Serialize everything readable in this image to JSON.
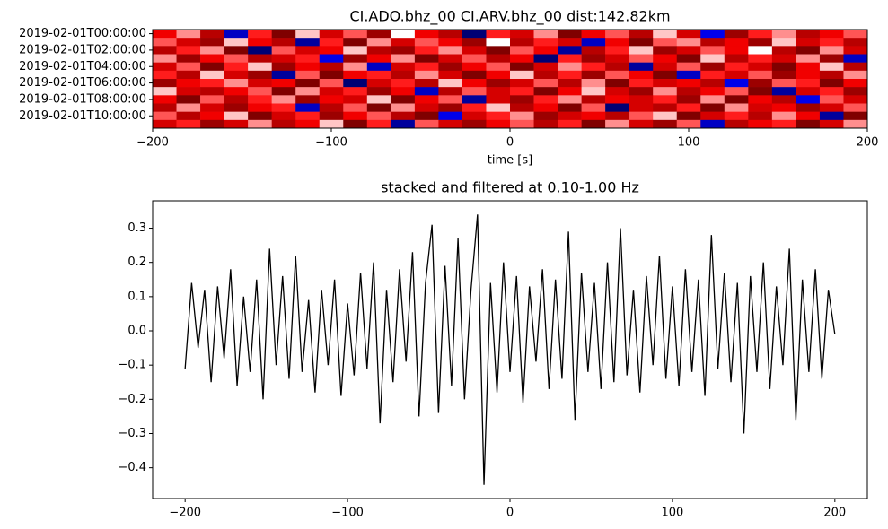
{
  "chart_data": [
    {
      "type": "heatmap",
      "title": "CI.ADO.bhz_00 CI.ARV.bhz_00  dist:142.82km",
      "xlabel": "time [s]",
      "colormap": "seismic",
      "categories": [
        "2019-02-01T00:00:00",
        null,
        "2019-02-01T02:00:00",
        null,
        "2019-02-01T04:00:00",
        null,
        "2019-02-01T06:00:00",
        null,
        "2019-02-01T08:00:00",
        null,
        "2019-02-01T10:00:00",
        null
      ],
      "xlim": [
        -200,
        200
      ],
      "xticks": [
        {
          "value": -200,
          "label": "−200"
        },
        {
          "value": -100,
          "label": "−100"
        },
        0,
        100,
        200
      ],
      "z": [
        [
          0.5,
          0.2,
          0.7,
          -0.6,
          0.4,
          0.9,
          0.1,
          0.6,
          0.3,
          0.8,
          0.0,
          0.5,
          0.7,
          -0.8,
          0.4,
          0.6,
          0.2,
          0.9,
          0.5,
          0.3,
          0.7,
          0.1,
          0.6,
          -0.5,
          0.8,
          0.4,
          0.2,
          0.7,
          0.5,
          0.3
        ],
        [
          0.3,
          0.6,
          0.8,
          0.1,
          0.5,
          0.7,
          -0.7,
          0.4,
          0.9,
          0.2,
          0.6,
          0.3,
          0.5,
          0.8,
          0.0,
          0.7,
          0.4,
          0.6,
          -0.6,
          0.5,
          0.9,
          0.3,
          0.2,
          0.7,
          0.5,
          0.8,
          0.1,
          0.6,
          0.4,
          0.7
        ],
        [
          0.7,
          0.4,
          0.2,
          0.9,
          -0.8,
          0.3,
          0.6,
          0.5,
          0.1,
          0.7,
          0.8,
          0.4,
          0.2,
          0.6,
          0.9,
          0.3,
          0.5,
          -0.7,
          0.7,
          0.4,
          0.1,
          0.8,
          0.6,
          0.3,
          0.5,
          0.0,
          0.7,
          0.9,
          0.2,
          0.6
        ],
        [
          0.2,
          0.8,
          0.5,
          0.3,
          0.7,
          0.6,
          0.4,
          -0.5,
          0.8,
          0.5,
          0.2,
          0.9,
          0.6,
          0.3,
          0.7,
          0.5,
          -0.8,
          0.4,
          0.8,
          0.6,
          0.3,
          0.5,
          0.9,
          0.1,
          0.7,
          0.4,
          0.6,
          0.2,
          0.8,
          -0.6
        ],
        [
          0.6,
          0.3,
          0.9,
          0.4,
          0.1,
          0.8,
          0.5,
          0.7,
          0.2,
          -0.6,
          0.6,
          0.4,
          0.8,
          0.5,
          0.3,
          0.9,
          0.6,
          0.2,
          0.4,
          0.7,
          -0.7,
          0.6,
          0.3,
          0.8,
          0.4,
          0.6,
          0.9,
          0.5,
          0.1,
          0.7
        ],
        [
          0.4,
          0.7,
          0.1,
          0.6,
          0.8,
          -0.7,
          0.3,
          0.9,
          0.5,
          0.4,
          0.7,
          0.2,
          0.6,
          0.9,
          0.5,
          0.1,
          0.7,
          0.4,
          0.8,
          0.3,
          0.5,
          0.9,
          -0.6,
          0.4,
          0.6,
          0.3,
          0.8,
          0.5,
          0.7,
          0.2
        ],
        [
          0.8,
          0.5,
          0.4,
          0.2,
          0.6,
          0.5,
          0.9,
          0.3,
          -0.8,
          0.6,
          0.4,
          0.7,
          0.1,
          0.5,
          0.8,
          0.6,
          0.3,
          0.7,
          0.2,
          0.9,
          0.4,
          0.6,
          0.5,
          0.7,
          -0.5,
          0.8,
          0.3,
          0.4,
          0.9,
          0.5
        ],
        [
          0.1,
          0.6,
          0.7,
          0.5,
          0.3,
          0.9,
          0.2,
          0.6,
          0.4,
          0.8,
          0.5,
          -0.6,
          0.7,
          0.3,
          0.6,
          0.4,
          0.9,
          0.5,
          0.1,
          0.6,
          0.8,
          0.2,
          0.7,
          0.5,
          0.3,
          0.9,
          -0.7,
          0.6,
          0.4,
          0.8
        ],
        [
          0.5,
          0.9,
          0.3,
          0.7,
          0.4,
          0.2,
          0.8,
          0.5,
          0.6,
          0.1,
          0.9,
          0.5,
          0.3,
          -0.7,
          0.6,
          0.8,
          0.4,
          0.2,
          0.7,
          0.5,
          0.6,
          0.4,
          0.8,
          0.2,
          0.9,
          0.5,
          0.7,
          -0.5,
          0.3,
          0.6
        ],
        [
          0.7,
          0.2,
          0.6,
          0.8,
          0.5,
          0.4,
          -0.6,
          0.7,
          0.3,
          0.9,
          0.2,
          0.6,
          0.8,
          0.4,
          0.1,
          0.7,
          0.5,
          0.9,
          0.3,
          -0.8,
          0.6,
          0.7,
          0.4,
          0.9,
          0.2,
          0.6,
          0.5,
          0.8,
          0.6,
          0.3
        ],
        [
          0.3,
          0.7,
          0.5,
          0.1,
          0.9,
          0.6,
          0.4,
          0.8,
          0.5,
          0.3,
          0.7,
          0.9,
          -0.5,
          0.6,
          0.4,
          0.2,
          0.8,
          0.6,
          0.5,
          0.7,
          0.3,
          0.1,
          0.9,
          0.6,
          0.4,
          0.7,
          0.2,
          0.5,
          -0.7,
          0.9
        ],
        [
          0.6,
          0.4,
          0.8,
          0.6,
          0.2,
          0.7,
          0.5,
          0.1,
          0.9,
          0.4,
          -0.7,
          0.3,
          0.6,
          0.8,
          0.5,
          0.3,
          0.7,
          0.4,
          0.9,
          0.2,
          0.6,
          0.8,
          0.3,
          -0.6,
          0.7,
          0.5,
          0.4,
          0.9,
          0.6,
          0.2
        ]
      ]
    },
    {
      "type": "line",
      "title": "stacked and filtered at 0.10-1.00 Hz",
      "color": "#000000",
      "xlim": [
        -220,
        220
      ],
      "ylim": [
        -0.49,
        0.38
      ],
      "xticks": [
        {
          "value": -200,
          "label": "−200"
        },
        {
          "value": -100,
          "label": "−100"
        },
        0,
        100,
        200
      ],
      "yticks": [
        {
          "value": -0.4,
          "label": "−0.4"
        },
        {
          "value": -0.3,
          "label": "−0.3"
        },
        {
          "value": -0.2,
          "label": "−0.2"
        },
        {
          "value": -0.1,
          "label": "−0.1"
        },
        {
          "value": 0,
          "label": "0.0"
        },
        0.1,
        0.2,
        0.3
      ],
      "x": [
        -200,
        -196,
        -192,
        -188,
        -184,
        -180,
        -176,
        -172,
        -168,
        -164,
        -160,
        -156,
        -152,
        -148,
        -144,
        -140,
        -136,
        -132,
        -128,
        -124,
        -120,
        -116,
        -112,
        -108,
        -104,
        -100,
        -96,
        -92,
        -88,
        -84,
        -80,
        -76,
        -72,
        -68,
        -64,
        -60,
        -56,
        -52,
        -48,
        -44,
        -40,
        -36,
        -32,
        -28,
        -24,
        -20,
        -16,
        -12,
        -8,
        -4,
        0,
        4,
        8,
        12,
        16,
        20,
        24,
        28,
        32,
        36,
        40,
        44,
        48,
        52,
        56,
        60,
        64,
        68,
        72,
        76,
        80,
        84,
        88,
        92,
        96,
        100,
        104,
        108,
        112,
        116,
        120,
        124,
        128,
        132,
        136,
        140,
        144,
        148,
        152,
        156,
        160,
        164,
        168,
        172,
        176,
        180,
        184,
        188,
        192,
        196,
        200
      ],
      "values": [
        -0.11,
        0.14,
        -0.05,
        0.12,
        -0.15,
        0.13,
        -0.08,
        0.18,
        -0.16,
        0.1,
        -0.12,
        0.15,
        -0.2,
        0.24,
        -0.1,
        0.16,
        -0.14,
        0.22,
        -0.12,
        0.09,
        -0.18,
        0.12,
        -0.1,
        0.15,
        -0.19,
        0.08,
        -0.13,
        0.17,
        -0.11,
        0.2,
        -0.27,
        0.12,
        -0.15,
        0.18,
        -0.09,
        0.23,
        -0.25,
        0.14,
        0.31,
        -0.24,
        0.19,
        -0.16,
        0.27,
        -0.2,
        0.12,
        0.34,
        -0.45,
        0.14,
        -0.18,
        0.2,
        -0.12,
        0.16,
        -0.21,
        0.13,
        -0.09,
        0.18,
        -0.17,
        0.15,
        -0.14,
        0.29,
        -0.26,
        0.17,
        -0.12,
        0.14,
        -0.17,
        0.2,
        -0.15,
        0.3,
        -0.13,
        0.12,
        -0.18,
        0.16,
        -0.1,
        0.22,
        -0.14,
        0.13,
        -0.16,
        0.18,
        -0.12,
        0.15,
        -0.19,
        0.28,
        -0.11,
        0.17,
        -0.15,
        0.14,
        -0.3,
        0.16,
        -0.12,
        0.2,
        -0.17,
        0.13,
        -0.1,
        0.24,
        -0.26,
        0.15,
        -0.12,
        0.18,
        -0.14,
        0.12,
        -0.01
      ]
    }
  ]
}
